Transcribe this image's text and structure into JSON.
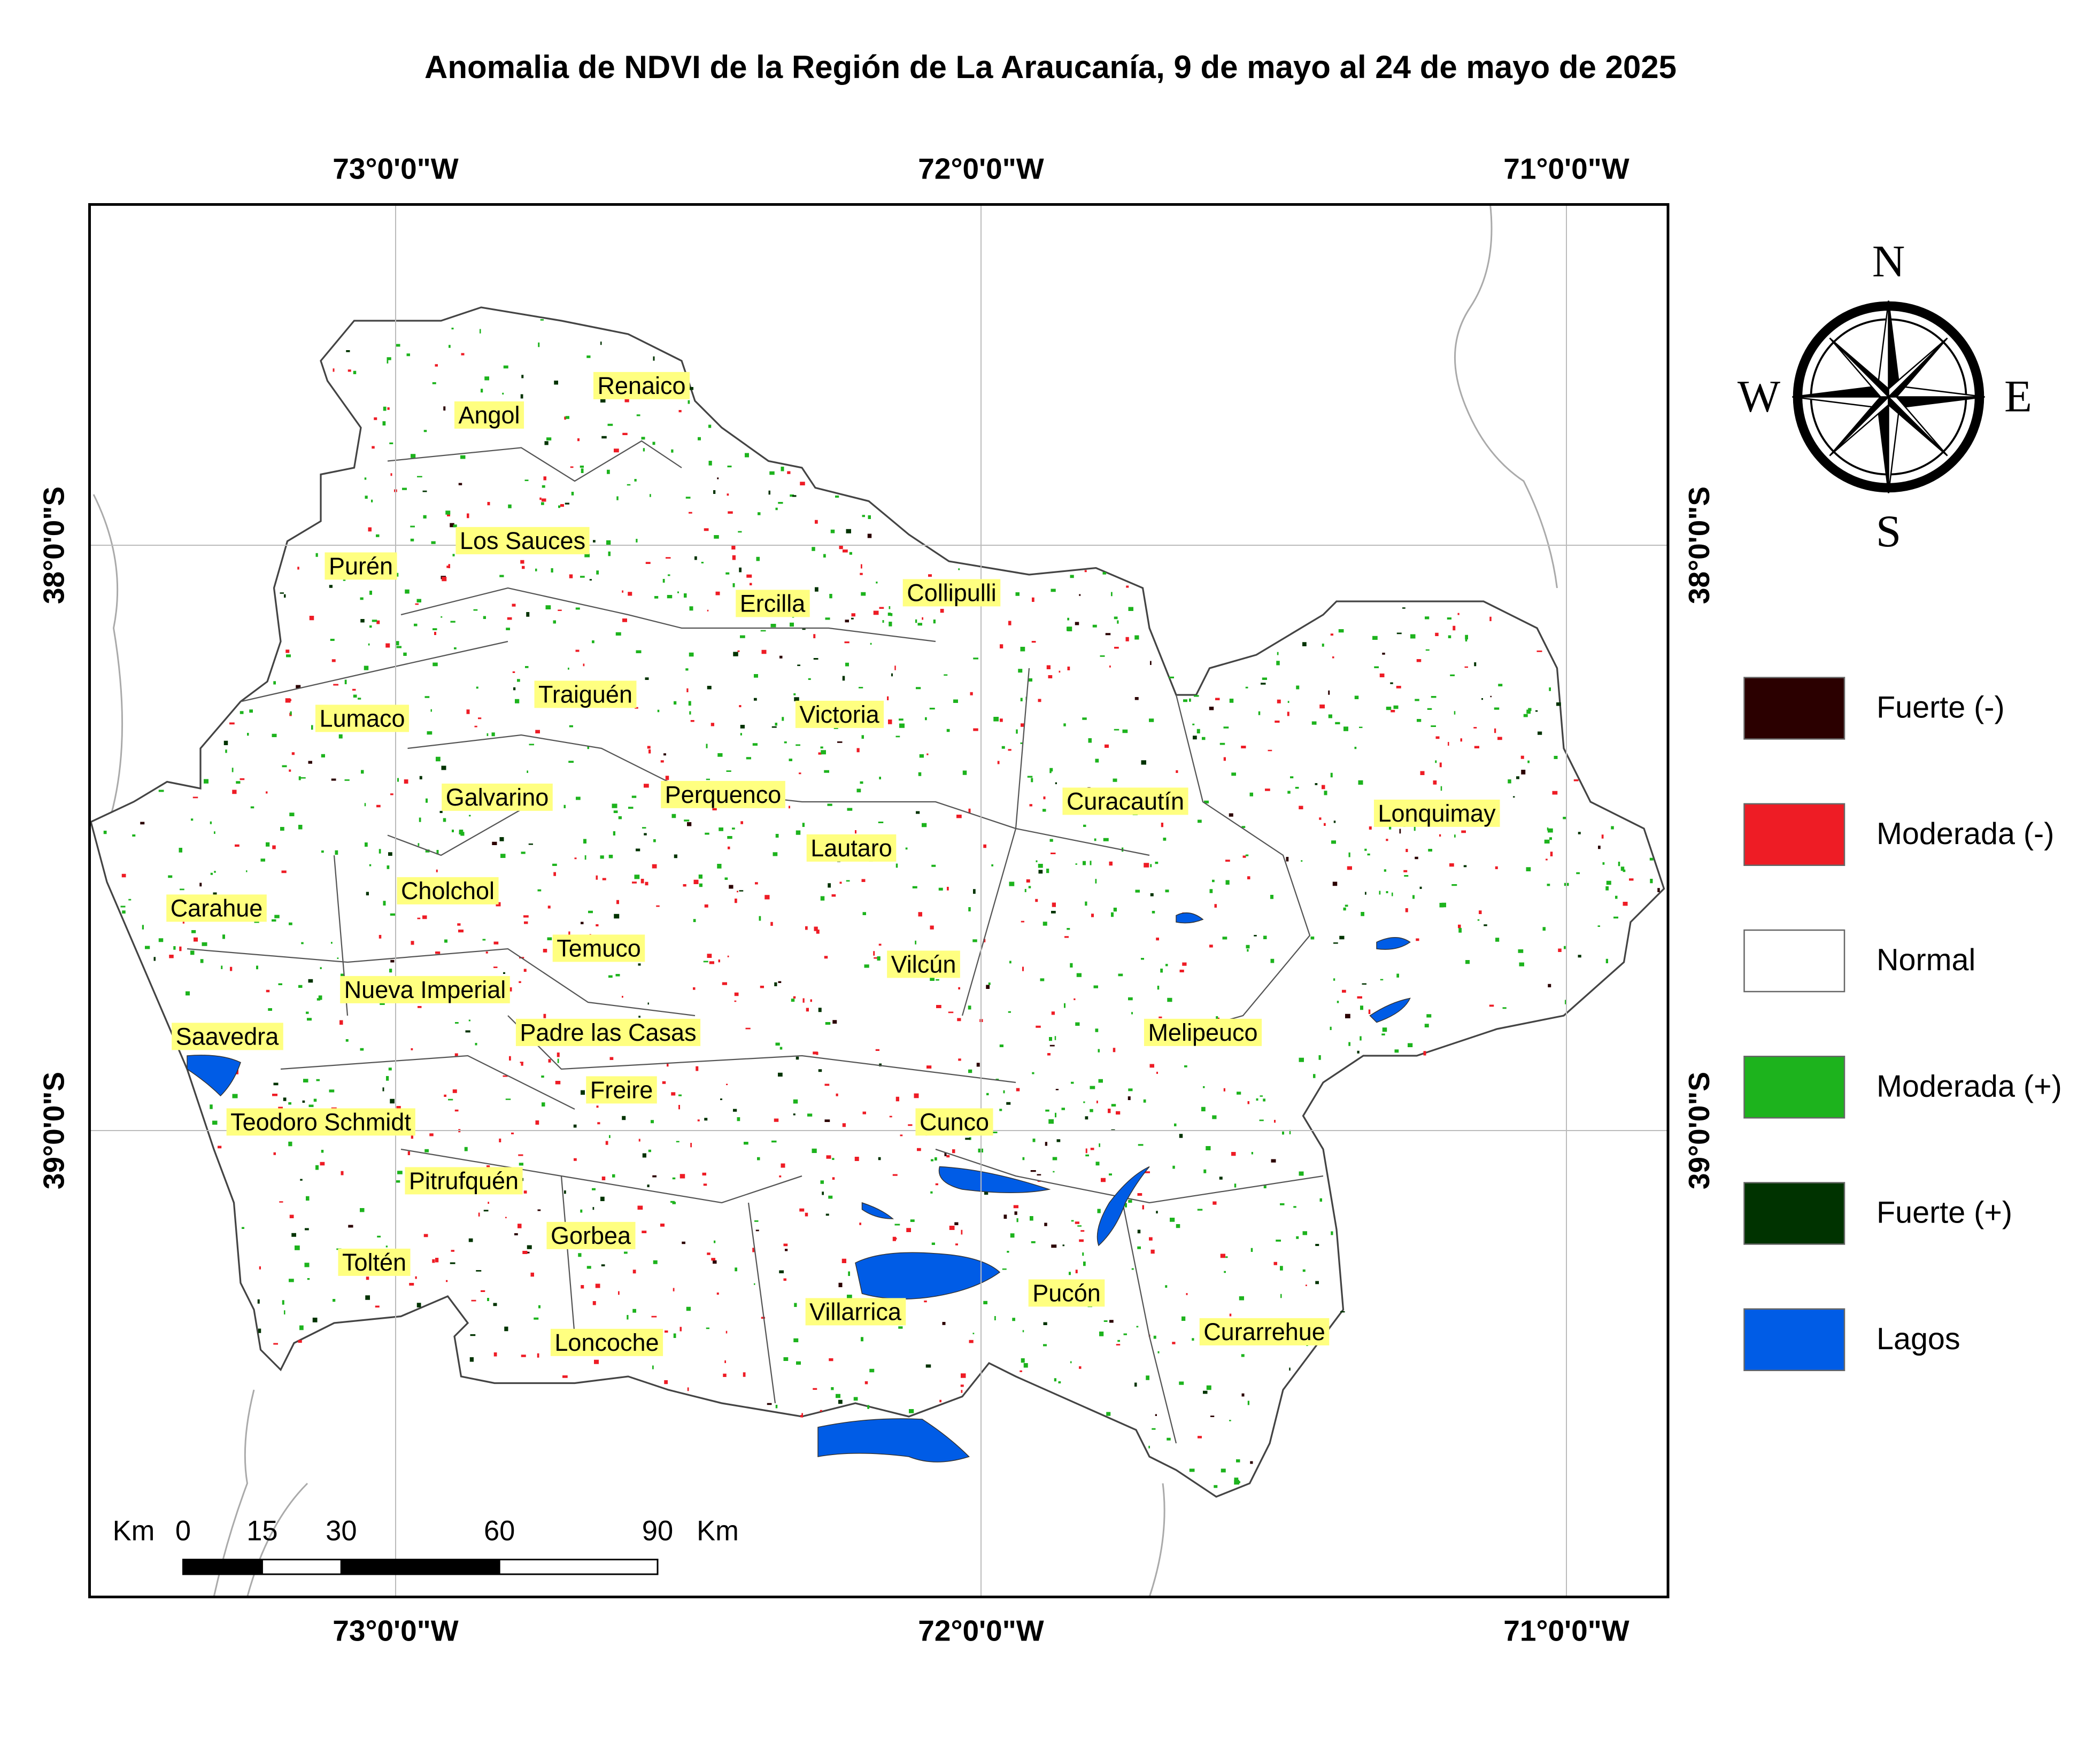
{
  "title": "Anomalia de NDVI de la Región de La Araucanía, 9 de mayo al 24 de mayo de 2025",
  "graticule": {
    "top": [
      "73°0'0\"W",
      "72°0'0\"W",
      "71°0'0\"W"
    ],
    "bottom": [
      "73°0'0\"W",
      "72°0'0\"W",
      "71°0'0\"W"
    ],
    "left": [
      "38°0'0\"S",
      "39°0'0\"S"
    ],
    "right": [
      "38°0'0\"S",
      "39°0'0\"S"
    ]
  },
  "places": [
    {
      "label": "Renaico"
    },
    {
      "label": "Angol"
    },
    {
      "label": "Los Sauces"
    },
    {
      "label": "Purén"
    },
    {
      "label": "Ercilla"
    },
    {
      "label": "Collipulli"
    },
    {
      "label": "Traiguén"
    },
    {
      "label": "Victoria"
    },
    {
      "label": "Lumaco"
    },
    {
      "label": "Curacautín"
    },
    {
      "label": "Lonquimay"
    },
    {
      "label": "Galvarino"
    },
    {
      "label": "Perquenco"
    },
    {
      "label": "Lautaro"
    },
    {
      "label": "Cholchol"
    },
    {
      "label": "Carahue"
    },
    {
      "label": "Temuco"
    },
    {
      "label": "Vilcún"
    },
    {
      "label": "Nueva Imperial"
    },
    {
      "label": "Saavedra"
    },
    {
      "label": "Padre las Casas"
    },
    {
      "label": "Melipeuco"
    },
    {
      "label": "Freire"
    },
    {
      "label": "Teodoro Schmidt"
    },
    {
      "label": "Cunco"
    },
    {
      "label": "Pitrufquén"
    },
    {
      "label": "Gorbea"
    },
    {
      "label": "Toltén"
    },
    {
      "label": "Pucón"
    },
    {
      "label": "Villarrica"
    },
    {
      "label": "Curarrehue"
    },
    {
      "label": "Loncoche"
    }
  ],
  "legend": {
    "items": [
      {
        "label": "Fuerte (-)",
        "color": "#2b0000"
      },
      {
        "label": "Moderada (-)",
        "color": "#ee1c25"
      },
      {
        "label": "Normal",
        "color": "#ffffff"
      },
      {
        "label": "Moderada (+)",
        "color": "#1db31d"
      },
      {
        "label": "Fuerte (+)",
        "color": "#003300"
      },
      {
        "label": "Lagos",
        "color": "#005ce6"
      }
    ]
  },
  "compass": {
    "n": "N",
    "s": "S",
    "e": "E",
    "w": "W"
  },
  "scale_bar": {
    "unit": "Km",
    "ticks": [
      0,
      15,
      30,
      60,
      90
    ]
  }
}
